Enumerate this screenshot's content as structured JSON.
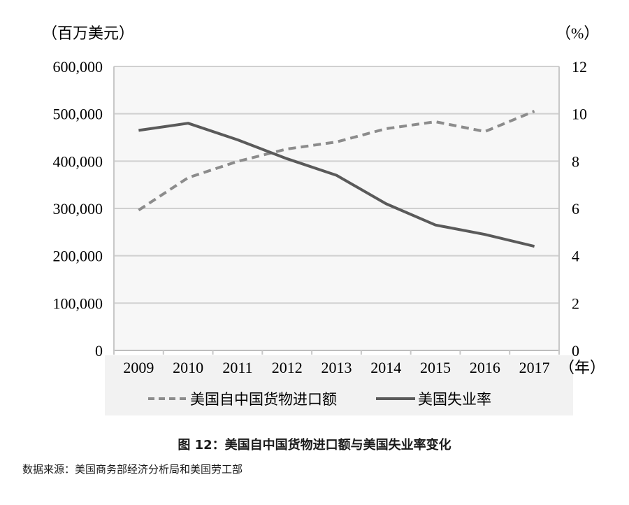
{
  "chart_data": {
    "type": "line",
    "categories": [
      "2009",
      "2010",
      "2011",
      "2012",
      "2013",
      "2014",
      "2015",
      "2016",
      "2017"
    ],
    "x_unit": "（年）",
    "y_left": {
      "unit": "（百万美元）",
      "ylim": [
        0,
        600000
      ],
      "ticks": [
        "0",
        "100,000",
        "200,000",
        "300,000",
        "400,000",
        "500,000",
        "600,000"
      ]
    },
    "y_right": {
      "unit": "（%）",
      "ylim": [
        0,
        12
      ],
      "ticks": [
        "0",
        "2",
        "4",
        "6",
        "8",
        "10",
        "12"
      ]
    },
    "grid": true,
    "legend_position": "bottom",
    "series": [
      {
        "name": "美国自中国货物进口额",
        "axis": "left",
        "style": "dashed",
        "color": "#8c8c8c",
        "values": [
          296374,
          364953,
          399371,
          425619,
          440430,
          468475,
          483202,
          462420,
          505470
        ]
      },
      {
        "name": "美国失业率",
        "axis": "right",
        "style": "solid",
        "color": "#5a5a5a",
        "values": [
          9.3,
          9.6,
          8.9,
          8.1,
          7.4,
          6.2,
          5.3,
          4.9,
          4.4
        ]
      }
    ]
  },
  "caption": "图 12：美国自中国货物进口额与美国失业率变化",
  "source": "数据来源：美国商务部经济分析局和美国劳工部"
}
